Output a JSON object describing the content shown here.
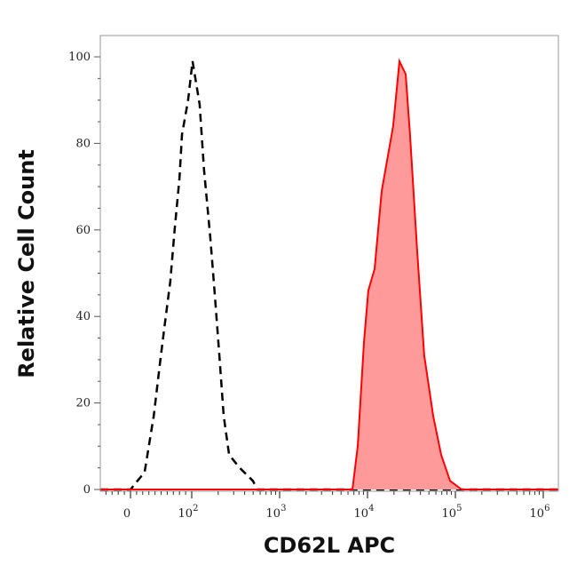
{
  "chart_data": {
    "type": "area",
    "title": "",
    "xlabel": "CD62L APC",
    "ylabel": "Relative Cell Count",
    "x_scale": "biexponential (linear near 0, log above 10^2)",
    "xlim": [
      -50,
      1500000
    ],
    "ylim": [
      0,
      100
    ],
    "grid": false,
    "x_ticks": [
      {
        "value": 0,
        "base": "0",
        "exp": ""
      },
      {
        "value": 100,
        "base": "10",
        "exp": "2"
      },
      {
        "value": 1000,
        "base": "10",
        "exp": "3"
      },
      {
        "value": 10000,
        "base": "10",
        "exp": "4"
      },
      {
        "value": 100000,
        "base": "10",
        "exp": "5"
      },
      {
        "value": 1000000,
        "base": "10",
        "exp": "6"
      }
    ],
    "y_ticks": [
      0,
      20,
      40,
      60,
      80,
      100
    ],
    "series": [
      {
        "style": "dashed-line",
        "color": "#000000",
        "x": [
          -50,
          0,
          23,
          38,
          48,
          55,
          65,
          72,
          80,
          84,
          94,
          102,
          123,
          138,
          163,
          183,
          206,
          231,
          266,
          351,
          497,
          558,
          1500000
        ],
        "y": [
          0,
          0,
          4,
          17,
          29,
          37,
          48,
          60,
          72,
          82,
          90,
          99,
          89,
          74,
          58,
          45,
          31,
          17,
          8,
          5,
          2,
          0,
          0
        ]
      },
      {
        "style": "filled",
        "color": "#ff0000",
        "fill": "#ff9a9a",
        "x": [
          -50,
          6730,
          7740,
          9120,
          10200,
          12050,
          14500,
          19600,
          23100,
          27200,
          30500,
          36800,
          44200,
          55900,
          68900,
          86900,
          118000,
          1500000
        ],
        "y": [
          0,
          0,
          10,
          34,
          46,
          51,
          69,
          84,
          99,
          96,
          82,
          55,
          31,
          17,
          8,
          2,
          0,
          0
        ]
      }
    ]
  }
}
